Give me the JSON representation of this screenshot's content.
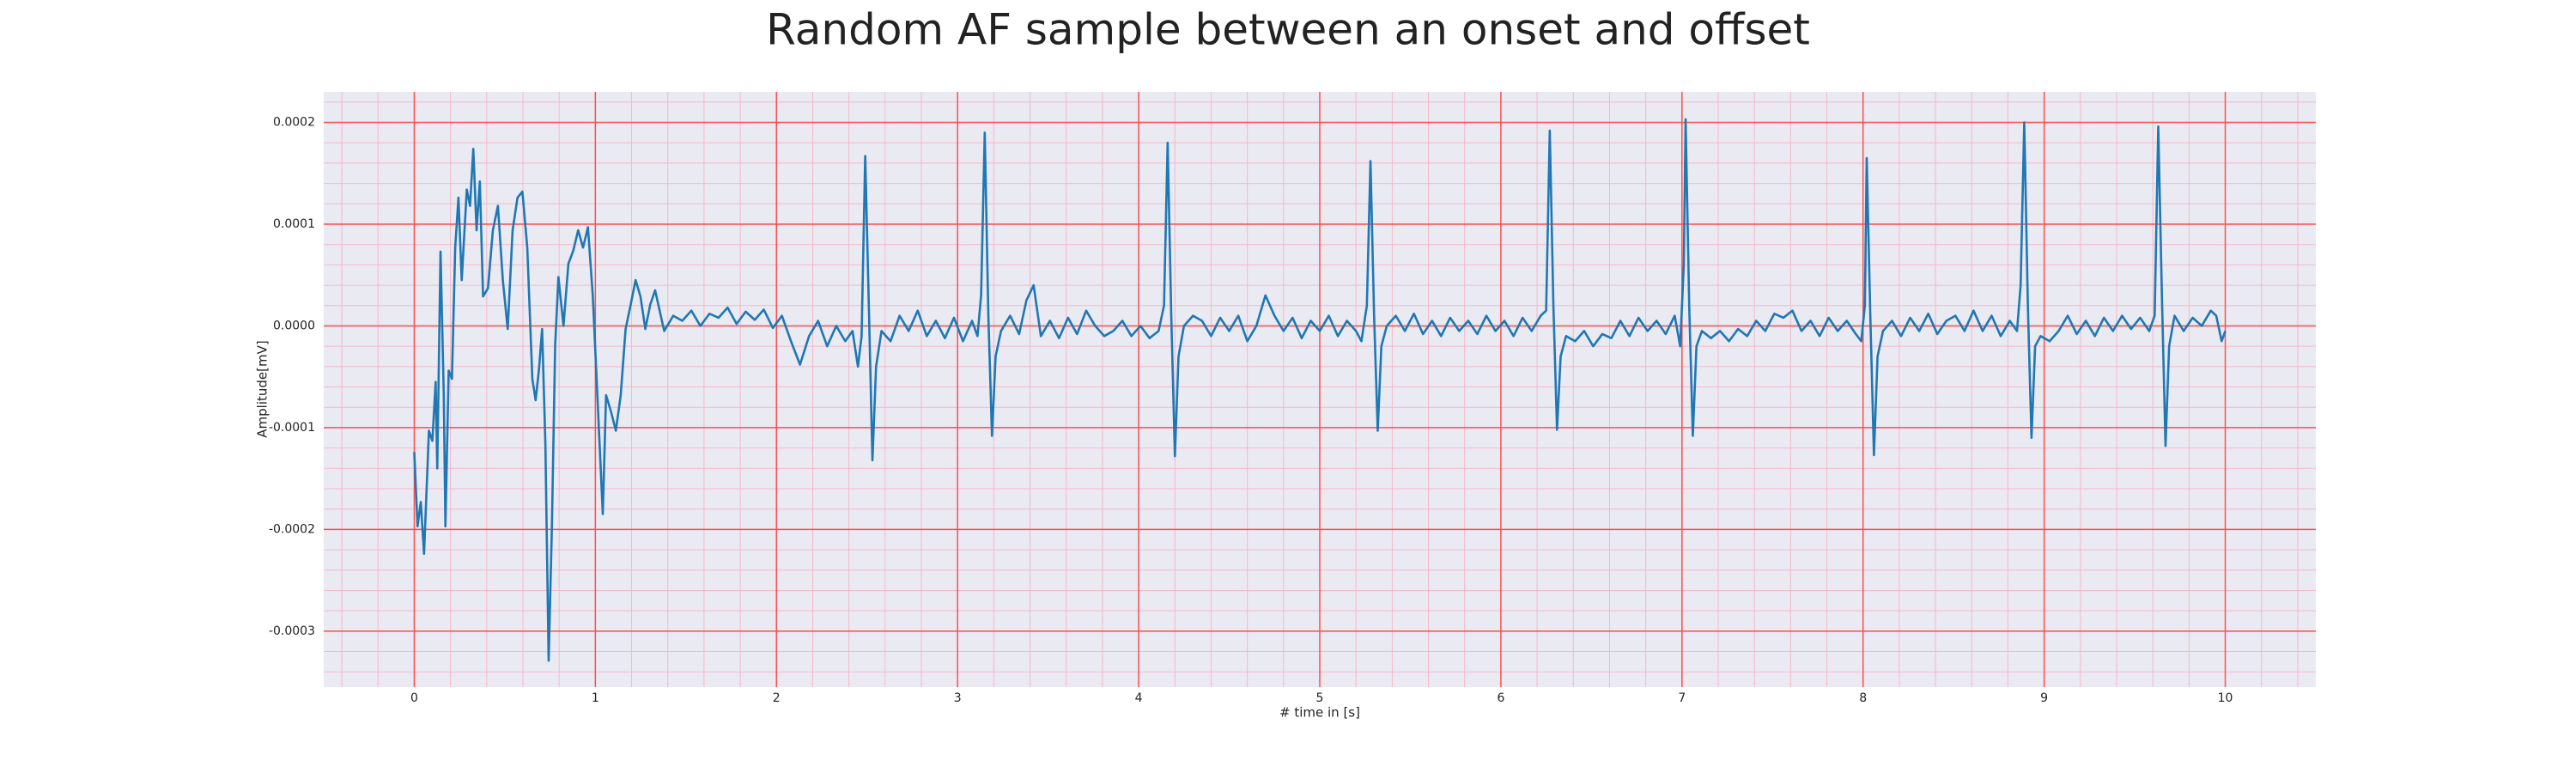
{
  "chart_data": {
    "type": "line",
    "title": "Random AF sample between an onset and offset",
    "xlabel": "# time in [s]",
    "ylabel": "Amplitude[mV]",
    "color": "#1f77b4",
    "background": "#eaeaf2",
    "grid": true,
    "grid_color": "#ff4d4d",
    "minor_grid_color": "#f5b8c8",
    "xlim": [
      -0.5,
      10.5
    ],
    "ylim": [
      -0.000355,
      0.00023
    ],
    "xticks": [
      0,
      1,
      2,
      3,
      4,
      5,
      6,
      7,
      8,
      9,
      10
    ],
    "yticks": [
      -0.0003,
      -0.0002,
      -0.0001,
      {
        "value": 0,
        "label": "0.0000"
      },
      0.0001,
      0.0002
    ],
    "xminorticks": [
      -0.4,
      -0.2,
      0.2,
      0.4,
      0.6,
      0.8,
      1.2,
      1.4,
      1.6,
      1.8,
      2.2,
      2.4,
      2.6,
      2.8,
      3.2,
      3.4,
      3.6,
      3.8,
      4.2,
      4.4,
      4.6,
      4.8,
      5.2,
      5.4,
      5.6,
      5.8,
      6.2,
      6.4,
      6.6,
      6.8,
      7.2,
      7.4,
      7.6,
      7.8,
      8.2,
      8.4,
      8.6,
      8.8,
      9.2,
      9.4,
      9.6,
      9.8,
      10.2,
      10.4
    ],
    "yminorticks": [
      0.00022,
      0.00018,
      0.00016,
      0.00014,
      0.00012,
      8e-05,
      6e-05,
      4e-05,
      2e-05,
      -2e-05,
      -4e-05,
      -6e-05,
      -8e-05,
      -0.00012,
      -0.00014,
      -0.00016,
      -0.00018,
      -0.00022,
      -0.00024,
      -0.00026,
      -0.00028,
      -0.00032,
      -0.00034
    ],
    "x": [
      0,
      0.018,
      0.036,
      0.054,
      0.081,
      0.1,
      0.118,
      0.127,
      0.145,
      0.163,
      0.172,
      0.19,
      0.208,
      0.226,
      0.244,
      0.262,
      0.29,
      0.308,
      0.326,
      0.344,
      0.362,
      0.38,
      0.407,
      0.434,
      0.462,
      0.489,
      0.516,
      0.543,
      0.57,
      0.597,
      0.624,
      0.652,
      0.67,
      0.688,
      0.706,
      0.724,
      0.742,
      0.76,
      0.778,
      0.796,
      0.824,
      0.851,
      0.878,
      0.905,
      0.932,
      0.959,
      0.986,
      1.041,
      1.059,
      1.086,
      1.113,
      1.14,
      1.167,
      1.195,
      1.222,
      1.249,
      1.276,
      1.303,
      1.33,
      1.38,
      1.43,
      1.48,
      1.53,
      1.58,
      1.63,
      1.68,
      1.73,
      1.78,
      1.83,
      1.88,
      1.93,
      1.98,
      2.03,
      2.08,
      2.13,
      2.18,
      2.23,
      2.28,
      2.33,
      2.38,
      2.42,
      2.45,
      2.47,
      2.49,
      2.51,
      2.53,
      2.55,
      2.58,
      2.63,
      2.68,
      2.73,
      2.78,
      2.83,
      2.88,
      2.93,
      2.98,
      3.03,
      3.08,
      3.11,
      3.13,
      3.15,
      3.17,
      3.19,
      3.21,
      3.24,
      3.29,
      3.34,
      3.38,
      3.42,
      3.46,
      3.51,
      3.56,
      3.61,
      3.66,
      3.71,
      3.76,
      3.81,
      3.86,
      3.91,
      3.96,
      4.01,
      4.06,
      4.11,
      4.14,
      4.16,
      4.18,
      4.2,
      4.22,
      4.25,
      4.3,
      4.35,
      4.4,
      4.45,
      4.5,
      4.55,
      4.6,
      4.65,
      4.7,
      4.75,
      4.8,
      4.85,
      4.9,
      4.95,
      5.0,
      5.05,
      5.1,
      5.15,
      5.2,
      5.23,
      5.26,
      5.28,
      5.3,
      5.32,
      5.34,
      5.37,
      5.42,
      5.47,
      5.52,
      5.57,
      5.62,
      5.67,
      5.72,
      5.77,
      5.82,
      5.87,
      5.92,
      5.97,
      6.02,
      6.07,
      6.12,
      6.17,
      6.22,
      6.25,
      6.27,
      6.29,
      6.31,
      6.33,
      6.36,
      6.41,
      6.46,
      6.51,
      6.56,
      6.61,
      6.66,
      6.71,
      6.76,
      6.81,
      6.86,
      6.91,
      6.96,
      6.99,
      7.01,
      7.02,
      7.04,
      7.06,
      7.08,
      7.11,
      7.16,
      7.21,
      7.26,
      7.31,
      7.36,
      7.41,
      7.46,
      7.51,
      7.56,
      7.61,
      7.66,
      7.71,
      7.76,
      7.81,
      7.86,
      7.91,
      7.96,
      7.99,
      8.01,
      8.02,
      8.04,
      8.06,
      8.08,
      8.11,
      8.16,
      8.21,
      8.26,
      8.31,
      8.36,
      8.41,
      8.46,
      8.51,
      8.56,
      8.61,
      8.66,
      8.71,
      8.76,
      8.81,
      8.85,
      8.87,
      8.89,
      8.91,
      8.93,
      8.95,
      8.98,
      9.03,
      9.08,
      9.13,
      9.18,
      9.23,
      9.28,
      9.33,
      9.38,
      9.43,
      9.48,
      9.53,
      9.58,
      9.61,
      9.63,
      9.65,
      9.67,
      9.69,
      9.72,
      9.77,
      9.82,
      9.87,
      9.92,
      9.95,
      9.98,
      10.0
    ],
    "values": [
      -0.000124,
      -0.000197,
      -0.000173,
      -0.000224,
      -0.000103,
      -0.000113,
      -5.5e-05,
      -0.00014,
      7.3e-05,
      -6.8e-05,
      -0.000197,
      -4.4e-05,
      -5.2e-05,
      7.7e-05,
      0.000126,
      4.5e-05,
      0.000134,
      0.000118,
      0.000174,
      9.4e-05,
      0.000142,
      2.9e-05,
      3.7e-05,
      9.4e-05,
      0.000118,
      4.5e-05,
      -3e-06,
      9.4e-05,
      0.000126,
      0.000132,
      7.7e-05,
      -5.2e-05,
      -7.3e-05,
      -4.4e-05,
      -3e-06,
      -0.000116,
      -0.000329,
      -0.000197,
      -1.9e-05,
      4.8e-05,
      0,
      6.1e-05,
      7.4e-05,
      9.4e-05,
      7.7e-05,
      9.7e-05,
      2.9e-05,
      -0.000185,
      -6.8e-05,
      -8.4e-05,
      -0.000103,
      -6.8e-05,
      -3e-06,
      2.1e-05,
      4.5e-05,
      2.9e-05,
      -3e-06,
      2.1e-05,
      3.5e-05,
      -5e-06,
      1e-05,
      5e-06,
      1.5e-05,
      0,
      1.2e-05,
      8e-06,
      1.8e-05,
      2e-06,
      1.4e-05,
      6e-06,
      1.6e-05,
      -2e-06,
      1e-05,
      -1.5e-05,
      -3.8e-05,
      -1e-05,
      5e-06,
      -2e-05,
      0,
      -1.5e-05,
      -5e-06,
      -4e-05,
      -1e-05,
      0.000167,
      2e-05,
      -0.000132,
      -4e-05,
      -5e-06,
      -1.5e-05,
      1e-05,
      -5e-06,
      1.5e-05,
      -1e-05,
      5e-06,
      -1.2e-05,
      8e-06,
      -1.5e-05,
      5e-06,
      -1e-05,
      3e-05,
      0.00019,
      1e-05,
      -0.000108,
      -3e-05,
      -5e-06,
      1e-05,
      -8e-06,
      2.5e-05,
      4e-05,
      -1e-05,
      5e-06,
      -1.2e-05,
      8e-06,
      -8e-06,
      1.5e-05,
      0,
      -1e-05,
      -5e-06,
      5e-06,
      -1e-05,
      0,
      -1.2e-05,
      -5e-06,
      2e-05,
      0.00018,
      1e-05,
      -0.000128,
      -3e-05,
      0,
      1e-05,
      5e-06,
      -1e-05,
      8e-06,
      -5e-06,
      1e-05,
      -1.5e-05,
      0,
      3e-05,
      1e-05,
      -5e-06,
      8e-06,
      -1.2e-05,
      5e-06,
      -5e-06,
      1e-05,
      -1e-05,
      5e-06,
      -5e-06,
      -1.5e-05,
      2e-05,
      0.000162,
      1e-05,
      -0.000103,
      -2e-05,
      0,
      1e-05,
      -5e-06,
      1.2e-05,
      -8e-06,
      5e-06,
      -1e-05,
      8e-06,
      -5e-06,
      5e-06,
      -8e-06,
      1e-05,
      -5e-06,
      5e-06,
      -1e-05,
      8e-06,
      -5e-06,
      1e-05,
      1.5e-05,
      0.000192,
      2e-05,
      -0.000102,
      -3e-05,
      -1e-05,
      -1.5e-05,
      -5e-06,
      -2e-05,
      -8e-06,
      -1.2e-05,
      5e-06,
      -1e-05,
      8e-06,
      -5e-06,
      5e-06,
      -8e-06,
      1e-05,
      -2e-05,
      6e-05,
      0.000203,
      2e-05,
      -0.000108,
      -2e-05,
      -5e-06,
      -1.2e-05,
      -5e-06,
      -1.5e-05,
      -3e-06,
      -1e-05,
      5e-06,
      -5e-06,
      1.2e-05,
      8e-06,
      1.5e-05,
      -5e-06,
      5e-06,
      -1e-05,
      8e-06,
      -5e-06,
      5e-06,
      -8e-06,
      -1.5e-05,
      2e-05,
      0.000165,
      1e-05,
      -0.000127,
      -3e-05,
      -5e-06,
      5e-06,
      -1e-05,
      8e-06,
      -5e-06,
      1.2e-05,
      -8e-06,
      5e-06,
      1e-05,
      -5e-06,
      1.5e-05,
      -5e-06,
      1e-05,
      -1e-05,
      5e-06,
      -5e-06,
      4e-05,
      0.0002,
      2e-05,
      -0.00011,
      -2e-05,
      -1e-05,
      -1.5e-05,
      -5e-06,
      1e-05,
      -8e-06,
      5e-06,
      -1e-05,
      8e-06,
      -5e-06,
      1e-05,
      -3e-06,
      8e-06,
      -5e-06,
      1e-05,
      0.000196,
      3e-05,
      -0.000118,
      -2e-05,
      1e-05,
      -5e-06,
      8e-06,
      0,
      1.5e-05,
      1e-05,
      -1.5e-05,
      -5e-06
    ]
  }
}
